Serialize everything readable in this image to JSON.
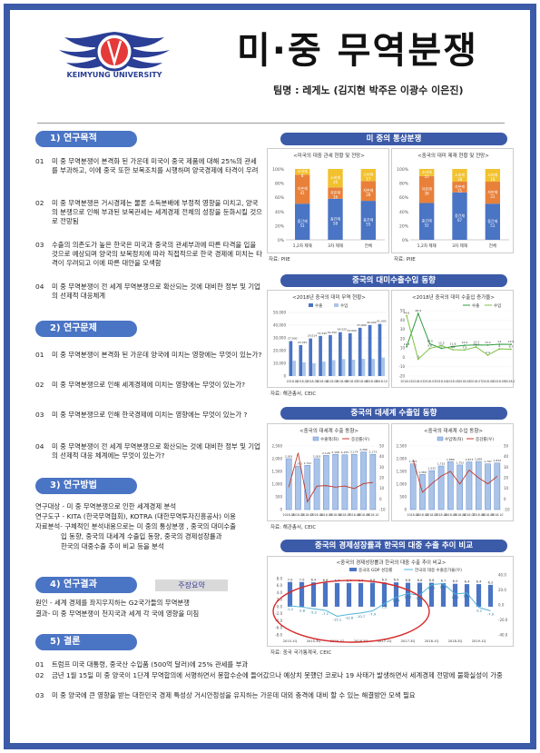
{
  "header": {
    "title": "미·중 무역분쟁",
    "team": "팀명 : 레게노 (김지현 박주은 이광수 이은진)",
    "logo_text": "KEIMYUNG UNIVERSITY",
    "logo_seal": "계명"
  },
  "sections": {
    "purpose": {
      "title": "1) 연구목적",
      "items": [
        {
          "num": "01",
          "text": "미 중 무역분쟁이 본격화 된 가운데 미국이 중국 제품에 대해 25%의 관세를 부과하고, 이에 중국 또한 보복조치를 시행하며 양국경제에 타격이 우려"
        },
        {
          "num": "02",
          "text": "미 중 무역분쟁은 거시경제는 물론 소득분배에 부정적 영향을 미치고, 양국의 분쟁으로 인해 부과된 보복관세는 세계경제 전체의 성장을 둔화시킬 것으로 전망됨"
        },
        {
          "num": "03",
          "text": "수출의 의존도가 높은 한국은 미국과 중국의 관세부과에 따른 타격을 입을 것으로 예상되며 양국의 보복정치에 따라 직접적으로 한국 경제에 미치는 타격이 우려되고 이에 따른 대안을 모색함"
        },
        {
          "num": "04",
          "text": "미 중 무역분쟁이 전 세계 무역분쟁으로 확산되는 것에 대비한 정부 및 기업의 선제적 대응체계"
        }
      ]
    },
    "problem": {
      "title": "2) 연구문제",
      "items": [
        {
          "num": "01",
          "text": "미 중 무역분쟁이 본격화 된 가운데 양국에 미치는 영향에는 무엇이 있는가?"
        },
        {
          "num": "02",
          "text": "미 중 무역분쟁으로 인해 세계경제에 미치는 영향에는 무엇이 있는가?"
        },
        {
          "num": "03",
          "text": "미 중 무역분쟁으로 인해 한국경제에 미치는 영향에는 무엇이 있는가 ?"
        },
        {
          "num": "04",
          "text": "미 중 무역분쟁이 전 세계 무역분쟁으로 확산되는 것에 대비한 정부 및 기업의 선제적 대응 체계에는 무엇이 있는가?"
        }
      ]
    },
    "method": {
      "title": "3) 연구방법",
      "lines": [
        "연구대상 - 미 중 무역분쟁으로 인한 세계경제 분석",
        "연구도구 - KITA (한국무역협회), KOTRA (대한무역투자진흥공사) 이용",
        "자료분석- 구체적인 분석내용으로는 미 중의 통상분쟁 , 중국의 대미수출",
        "입 동향, 중국의 대세계 수출입 동향, 중국의 경제성장률과",
        "한국의 대중수출 추이 비교 등을 분석"
      ]
    },
    "result": {
      "title": "4) 연구결과",
      "badge": "주장요약",
      "lines": [
        "원인 - 세계 경제를 좌지우지하는 G2국가들의 무역분쟁",
        "결과- 미 중 무역분쟁이 천지국과 세계 각 국에 영향을 미침"
      ]
    },
    "conclusion": {
      "title": "5) 결론",
      "items": [
        {
          "num": "01",
          "text": "트럼프 미국 대통령, 중국산 수입품 (500억 달러)에 25% 관세를 부과"
        },
        {
          "num": "02",
          "text": "금년 1월 15일 미 중 양국이 1단계 무역합의에 서명하면서 봉합수순에 들어갔으나 예상치 못했던 코로나 19 사태가 발생하면서 세계경제 전망에 불확실성이 가중"
        },
        {
          "num": "03",
          "text": "미 중 양국에 큰 영향을 받는 대한민국 경제 특성상 거시안정성을 유지하는 가운데 대외 충격에 대비 할 수 있는 해결방안 모색 필요"
        }
      ]
    }
  },
  "right": {
    "bar1": "미 중의 통상분쟁",
    "bar2": "중국의 대미수출수입 동향",
    "bar3": "중국의 대세계 수출입 동향",
    "bar4": "중국의 경제성장률과 한국의 대중 수출 추이 비교",
    "src_pie": "자료: PIIE",
    "src_ceic": "자료: 해관총서, CEIC",
    "src_last": "자료: 중국 국가통계국, CEIC"
  },
  "chart_data": [
    {
      "type": "bar",
      "title": "<미국의 대중 관세 현황 및 전망>",
      "categories": [
        "1,2차 제재",
        "3차 제재",
        "전체"
      ],
      "series": [
        {
          "name": "중간재",
          "values": [
            51,
            58,
            55
          ]
        },
        {
          "name": "자본재",
          "values": [
            41,
            16,
            28
          ]
        },
        {
          "name": "소비재",
          "values": [
            8,
            26,
            17
          ]
        }
      ],
      "ylim": [
        0,
        100
      ]
    },
    {
      "type": "bar",
      "title": "<중국의 대미 제재 현황 및 전망>",
      "categories": [
        "1,2차 제재",
        "3차 제재",
        "전체"
      ],
      "series": [
        {
          "name": "중간재",
          "values": [
            52,
            67,
            51
          ]
        },
        {
          "name": "자본재",
          "values": [
            38,
            15,
            31
          ]
        },
        {
          "name": "소비재",
          "values": [
            10,
            18,
            18
          ]
        }
      ],
      "ylim": [
        0,
        100
      ]
    },
    {
      "type": "bar",
      "title": "<2018년 중국의 대미 무역 현황>",
      "categories": [
        "2018.01",
        "2018.02",
        "2018.03",
        "2018.04",
        "2018.05",
        "2018.06",
        "2018.07",
        "2018.08",
        "2018.09",
        "2018.10"
      ],
      "series": [
        {
          "name": "수출",
          "values": [
            27500,
            24320,
            29514,
            31545,
            32250,
            34520,
            33690,
            37960,
            40090,
            41000
          ]
        },
        {
          "name": "수입",
          "values": [
            12054,
            10800,
            9984,
            11340,
            12510,
            13340,
            12820,
            13510,
            13450,
            14530
          ]
        }
      ],
      "ylim": [
        0,
        50000
      ]
    },
    {
      "type": "line",
      "title": "<2018년 중국의 대미 수출입 증가율>",
      "categories": [
        "2018.01",
        "2018.02",
        "2018.03",
        "2018.04",
        "2018.05",
        "2018.06",
        "2018.07",
        "2018.08",
        "2018.09",
        "2018.10"
      ],
      "series": [
        {
          "name": "수출",
          "values": [
            11.3,
            46.9,
            14.5,
            9.7,
            11.6,
            12.9,
            13.3,
            13.2,
            14.0,
            13.9
          ]
        },
        {
          "name": "수입",
          "values": [
            44.6,
            -2.0,
            9.6,
            12.5,
            8.2,
            7.9,
            11.1,
            2.4,
            9.0,
            8.7
          ]
        }
      ],
      "ylim": [
        -20,
        50
      ]
    },
    {
      "type": "bar",
      "title": "<중국의 대세계 수출 동향>",
      "categories": [
        "2018.01",
        "2018.02",
        "2018.03",
        "2018.04",
        "2018.05",
        "2018.06",
        "2018.07",
        "2018.08",
        "2018.09",
        "2018.10"
      ],
      "series": [
        {
          "name": "수출액(좌)",
          "values": [
            2001,
            1713,
            1741,
            2003,
            2128,
            2168,
            2155,
            2174,
            2266,
            2173
          ]
        },
        {
          "name": "증감률(우)",
          "values": [
            11.1,
            43.5,
            -2.7,
            12.1,
            12.6,
            11.2,
            12.2,
            9.8,
            14.5,
            15.6
          ]
        }
      ],
      "ylim": [
        0,
        2500
      ]
    },
    {
      "type": "bar",
      "title": "<중국의 대세계 수입 동향>",
      "categories": [
        "2018.01",
        "2018.02",
        "2018.03",
        "2018.04",
        "2018.05",
        "2018.06",
        "2018.07",
        "2018.08",
        "2018.09",
        "2018.10"
      ],
      "series": [
        {
          "name": "수입액(좌)",
          "values": [
            1797,
            1380,
            1532,
            1715,
            1880,
            1753,
            1873,
            1891,
            1797,
            1832
          ]
        },
        {
          "name": "증감률(우)",
          "values": [
            37.0,
            6.3,
            14.4,
            21.5,
            26.0,
            14.1,
            27.3,
            20.0,
            14.3,
            21.4
          ]
        }
      ],
      "ylim": [
        0,
        2500
      ]
    },
    {
      "type": "line",
      "title": "<중국의 경제성장률과 한국의 대중 수출 추이 비교>",
      "categories": [
        "2015-1Q",
        "2015-2Q",
        "2015-3Q",
        "2015-4Q",
        "2016-1Q",
        "2016-2Q",
        "2016-3Q",
        "2016-4Q",
        "2017-1Q",
        "2017-2Q",
        "2017-3Q",
        "2017-4Q",
        "2018-1Q",
        "2018-2Q",
        "2018-3Q",
        "2018-4Q",
        "2019-1Q",
        "2019-2Q"
      ],
      "series": [
        {
          "name": "중국의 GDP 성장률",
          "values": [
            7.0,
            7.0,
            6.9,
            6.8,
            6.7,
            6.7,
            6.7,
            6.8,
            6.9,
            6.9,
            6.8,
            6.8,
            6.8,
            6.7,
            6.5,
            6.4,
            6.4,
            6.2
          ]
        },
        {
          "name": "한국의 대중 수출증가율(우)",
          "values": [
            -1.2,
            -2.8,
            -5.2,
            -7.1,
            -15.1,
            -12.6,
            -10.7,
            -7.9,
            1.6,
            10.4,
            15.2,
            13.1,
            27.2,
            28.5,
            14.5,
            16.1,
            -3.2,
            -7.9
          ]
        }
      ],
      "ylim": [
        0,
        9
      ]
    }
  ]
}
